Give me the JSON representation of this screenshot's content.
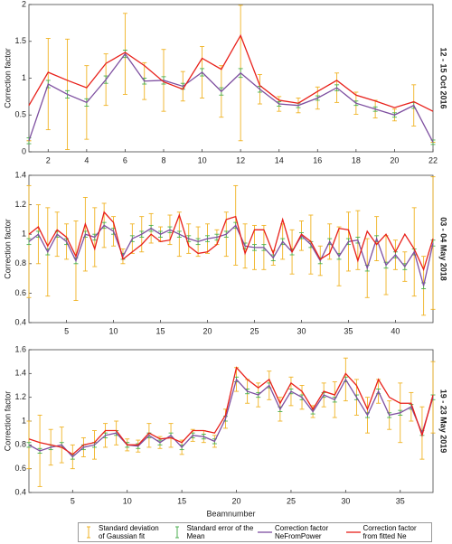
{
  "chart_data": [
    {
      "type": "line",
      "ylabel": "Correction factor",
      "side_label": "12 - 15 Oct 2016",
      "x": [
        1,
        2,
        3,
        4,
        5,
        6,
        7,
        8,
        9,
        10,
        11,
        12,
        13,
        14,
        15,
        16,
        17,
        18,
        19,
        20,
        21,
        22
      ],
      "xlim": [
        1,
        22
      ],
      "xticks": [
        2,
        4,
        6,
        8,
        10,
        12,
        14,
        16,
        18,
        20,
        22
      ],
      "ylim": [
        0,
        2
      ],
      "yticks": [
        0,
        0.5,
        1,
        1.5,
        2
      ],
      "series": [
        {
          "name": "Standard deviation of Gaussian fit",
          "color": "#f0b323",
          "errors": [
            0,
            0.62,
            0.75,
            0.5,
            0.35,
            0.55,
            0.25,
            0.42,
            0.2,
            0.35,
            0.35,
            0.92,
            0.2,
            0.1,
            0.1,
            0.15,
            0.2,
            0.15,
            0.12,
            0.08,
            0.28,
            0
          ]
        },
        {
          "name": "Standard error of the Mean",
          "color": "#4caf50",
          "errors": [
            0.04,
            0.05,
            0.05,
            0.05,
            0.05,
            0.05,
            0.04,
            0.05,
            0.04,
            0.05,
            0.05,
            0.06,
            0.04,
            0.03,
            0.03,
            0.03,
            0.04,
            0.03,
            0.03,
            0.03,
            0.04,
            0.03
          ]
        },
        {
          "name": "Correction factor NeFromPower",
          "color": "#7e4fa0",
          "values": [
            0.15,
            0.92,
            0.78,
            0.67,
            0.98,
            1.33,
            0.96,
            0.97,
            0.89,
            1.08,
            0.82,
            1.07,
            0.85,
            0.65,
            0.63,
            0.73,
            0.87,
            0.66,
            0.58,
            0.5,
            0.63,
            0.13
          ]
        },
        {
          "name": "Correction factor from fitted Ne",
          "color": "#e8201a",
          "values": [
            0.63,
            1.08,
            0.97,
            0.87,
            1.2,
            1.35,
            1.17,
            0.95,
            0.85,
            1.27,
            1.12,
            1.58,
            0.9,
            0.7,
            0.66,
            0.82,
            0.97,
            0.77,
            0.69,
            0.6,
            0.68,
            0.55
          ]
        }
      ]
    },
    {
      "type": "line",
      "ylabel": "Correction factor",
      "side_label": "03 - 04 May 2018",
      "x": [
        1,
        2,
        3,
        4,
        5,
        6,
        7,
        8,
        9,
        10,
        11,
        12,
        13,
        14,
        15,
        16,
        17,
        18,
        19,
        20,
        21,
        22,
        23,
        24,
        25,
        26,
        27,
        28,
        29,
        30,
        31,
        32,
        33,
        34,
        35,
        36,
        37,
        38,
        39,
        40,
        41,
        42,
        43,
        44
      ],
      "xlim": [
        1,
        44
      ],
      "xticks": [
        5,
        10,
        15,
        20,
        25,
        30,
        35,
        40
      ],
      "ylim": [
        0.4,
        1.4
      ],
      "yticks": [
        0.4,
        0.6,
        0.8,
        1,
        1.2,
        1.4
      ],
      "series": [
        {
          "name": "Standard deviation of Gaussian fit",
          "color": "#f0b323",
          "errors": [
            0.38,
            0.2,
            0.3,
            0.15,
            0.12,
            0.27,
            0.25,
            0.2,
            0.15,
            0.1,
            0.05,
            0.1,
            0.12,
            0.1,
            0.05,
            0.1,
            0.15,
            0.1,
            0.1,
            0.1,
            0.05,
            0.15,
            0.27,
            0.15,
            0.15,
            0.15,
            0.05,
            0.12,
            0.15,
            0.1,
            0.2,
            0.1,
            0.12,
            0.2,
            0.2,
            0.2,
            0.2,
            0.15,
            0.2,
            0.1,
            0.1,
            0.3,
            0.2,
            0.45
          ]
        },
        {
          "name": "Standard error of the Mean",
          "color": "#4caf50",
          "errors": [
            0.02,
            0.02,
            0.02,
            0.02,
            0.02,
            0.02,
            0.02,
            0.02,
            0.02,
            0.02,
            0.02,
            0.02,
            0.02,
            0.02,
            0.02,
            0.02,
            0.02,
            0.02,
            0.02,
            0.02,
            0.02,
            0.02,
            0.02,
            0.02,
            0.02,
            0.02,
            0.02,
            0.02,
            0.02,
            0.02,
            0.02,
            0.02,
            0.02,
            0.02,
            0.02,
            0.02,
            0.02,
            0.02,
            0.02,
            0.02,
            0.02,
            0.02,
            0.02,
            0.02
          ]
        },
        {
          "name": "Correction factor NeFromPower",
          "color": "#7e4fa0",
          "values": [
            0.95,
            1.0,
            0.88,
            1.0,
            0.95,
            0.82,
            1.0,
            0.98,
            1.06,
            1.02,
            0.85,
            0.97,
            1.0,
            1.04,
            1.0,
            1.03,
            1.0,
            0.97,
            0.95,
            0.97,
            0.98,
            1.0,
            1.06,
            0.92,
            0.91,
            0.91,
            0.84,
            0.95,
            0.88,
            0.99,
            0.93,
            0.82,
            0.95,
            0.85,
            0.95,
            0.96,
            0.77,
            0.97,
            0.79,
            0.86,
            0.78,
            0.88,
            0.65,
            0.94
          ]
        },
        {
          "name": "Correction factor from fitted Ne",
          "color": "#e8201a",
          "values": [
            1.0,
            1.05,
            0.92,
            1.03,
            0.98,
            0.85,
            1.07,
            0.9,
            1.15,
            1.08,
            0.83,
            0.88,
            0.93,
            1.0,
            0.95,
            0.96,
            1.13,
            0.92,
            0.87,
            0.88,
            0.93,
            1.1,
            1.12,
            0.87,
            1.03,
            1.03,
            0.87,
            1.1,
            0.88,
            1.0,
            0.95,
            0.83,
            0.87,
            1.04,
            1.03,
            0.82,
            1.02,
            0.93,
            1.0,
            0.88,
            1.0,
            0.9,
            0.76,
            0.97
          ]
        }
      ]
    },
    {
      "type": "line",
      "ylabel": "Correction factor",
      "xlabel": "Beamnumber",
      "side_label": "19 - 23 May 2019",
      "x": [
        1,
        2,
        3,
        4,
        5,
        6,
        7,
        8,
        9,
        10,
        11,
        12,
        13,
        14,
        15,
        16,
        17,
        18,
        19,
        20,
        21,
        22,
        23,
        24,
        25,
        26,
        27,
        28,
        29,
        30,
        31,
        32,
        33,
        34,
        35,
        36,
        37,
        38
      ],
      "xlim": [
        1,
        38
      ],
      "xticks": [
        5,
        10,
        15,
        20,
        25,
        30,
        35
      ],
      "ylim": [
        0.4,
        1.6
      ],
      "yticks": [
        0.4,
        0.6,
        0.8,
        1,
        1.2,
        1.4,
        1.6
      ],
      "series": [
        {
          "name": "Standard deviation of Gaussian fit",
          "color": "#f0b323",
          "errors": [
            0.2,
            0.3,
            0.15,
            0.15,
            0.1,
            0.08,
            0.12,
            0.1,
            0.1,
            0.05,
            0.05,
            0.1,
            0.05,
            0.1,
            0.06,
            0.05,
            0.05,
            0.05,
            0.08,
            0.1,
            0.1,
            0.1,
            0.12,
            0.1,
            0.12,
            0.1,
            0.05,
            0.1,
            0.15,
            0.18,
            0.15,
            0.15,
            0.1,
            0.12,
            0.25,
            0.12,
            0.22,
            0.3
          ]
        },
        {
          "name": "Standard error of the Mean",
          "color": "#4caf50",
          "errors": [
            0.02,
            0.02,
            0.02,
            0.02,
            0.02,
            0.02,
            0.02,
            0.02,
            0.02,
            0.02,
            0.02,
            0.02,
            0.02,
            0.02,
            0.02,
            0.02,
            0.02,
            0.02,
            0.02,
            0.02,
            0.02,
            0.02,
            0.02,
            0.02,
            0.02,
            0.02,
            0.02,
            0.02,
            0.02,
            0.02,
            0.02,
            0.02,
            0.02,
            0.02,
            0.02,
            0.02,
            0.02,
            0.02
          ]
        },
        {
          "name": "Correction factor NeFromPower",
          "color": "#7e4fa0",
          "values": [
            0.8,
            0.75,
            0.78,
            0.8,
            0.7,
            0.78,
            0.8,
            0.88,
            0.9,
            0.8,
            0.79,
            0.88,
            0.82,
            0.88,
            0.78,
            0.88,
            0.87,
            0.83,
            1.02,
            1.35,
            1.25,
            1.22,
            1.3,
            1.1,
            1.25,
            1.2,
            1.08,
            1.22,
            1.18,
            1.35,
            1.2,
            1.05,
            1.25,
            1.05,
            1.07,
            1.12,
            0.9,
            1.2
          ]
        },
        {
          "name": "Correction factor from fitted Ne",
          "color": "#e8201a",
          "values": [
            0.85,
            0.82,
            0.8,
            0.78,
            0.72,
            0.8,
            0.82,
            0.92,
            0.92,
            0.8,
            0.8,
            0.9,
            0.85,
            0.86,
            0.82,
            0.92,
            0.92,
            0.9,
            1.05,
            1.45,
            1.35,
            1.28,
            1.35,
            1.15,
            1.32,
            1.25,
            1.1,
            1.25,
            1.22,
            1.4,
            1.3,
            1.1,
            1.35,
            1.2,
            1.15,
            1.15,
            0.88,
            1.22
          ]
        }
      ]
    }
  ]
}
